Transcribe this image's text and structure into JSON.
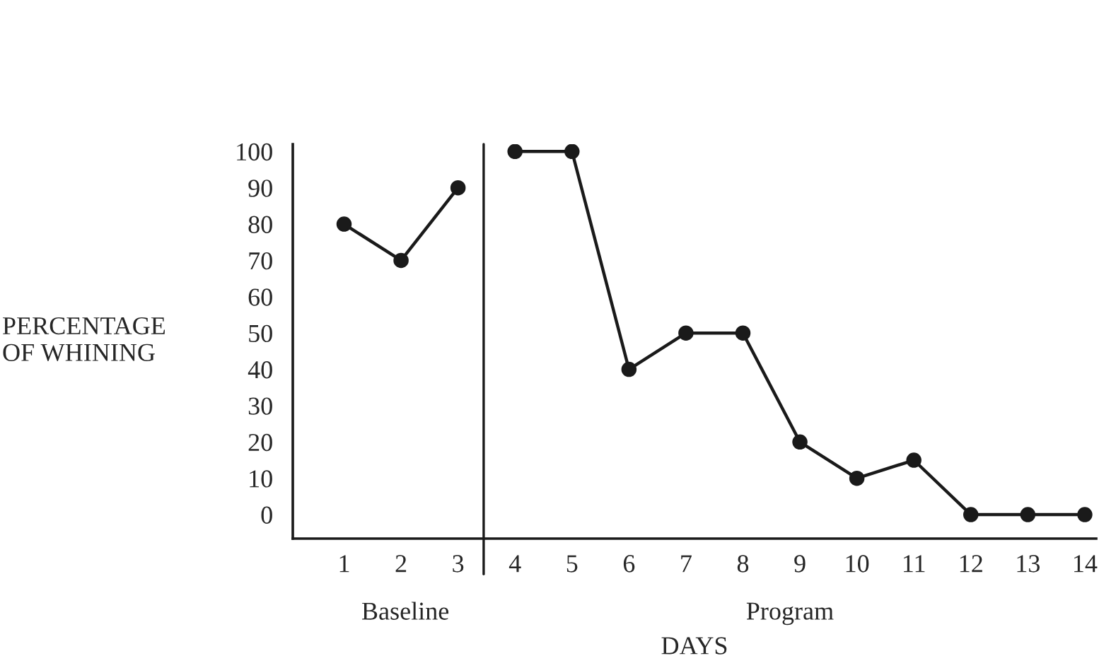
{
  "chart_data": {
    "type": "line",
    "xlabel": "DAYS",
    "ylabel": "PERCENTAGE\nOF WHINING",
    "series": [
      {
        "color": "#1a1a1a",
        "x": [
          1,
          2,
          3
        ],
        "values": [
          80,
          70,
          90
        ]
      },
      {
        "color": "#1a1a1a",
        "x": [
          4,
          5,
          6,
          7,
          8,
          9,
          10,
          11,
          12,
          13,
          14
        ],
        "values": [
          100,
          100,
          40,
          50,
          50,
          20,
          10,
          15,
          0,
          0,
          0
        ]
      }
    ],
    "xlim": [
      0.1,
      14.2
    ],
    "ylim": [
      -6.6,
      102
    ],
    "xticks": [
      1,
      2,
      3,
      4,
      5,
      6,
      7,
      8,
      9,
      10,
      11,
      12,
      13,
      14
    ],
    "yticks": [
      0,
      10,
      20,
      30,
      40,
      50,
      60,
      70,
      80,
      90,
      100
    ],
    "ref_lines": [
      {
        "axis": "x",
        "value": 3.45,
        "color": "#1a1a1a",
        "line_style": "solid"
      }
    ],
    "annotations": [
      "Baseline",
      "Program"
    ],
    "marker": "circle",
    "line_style": "solid",
    "grid": false,
    "legend": false
  }
}
